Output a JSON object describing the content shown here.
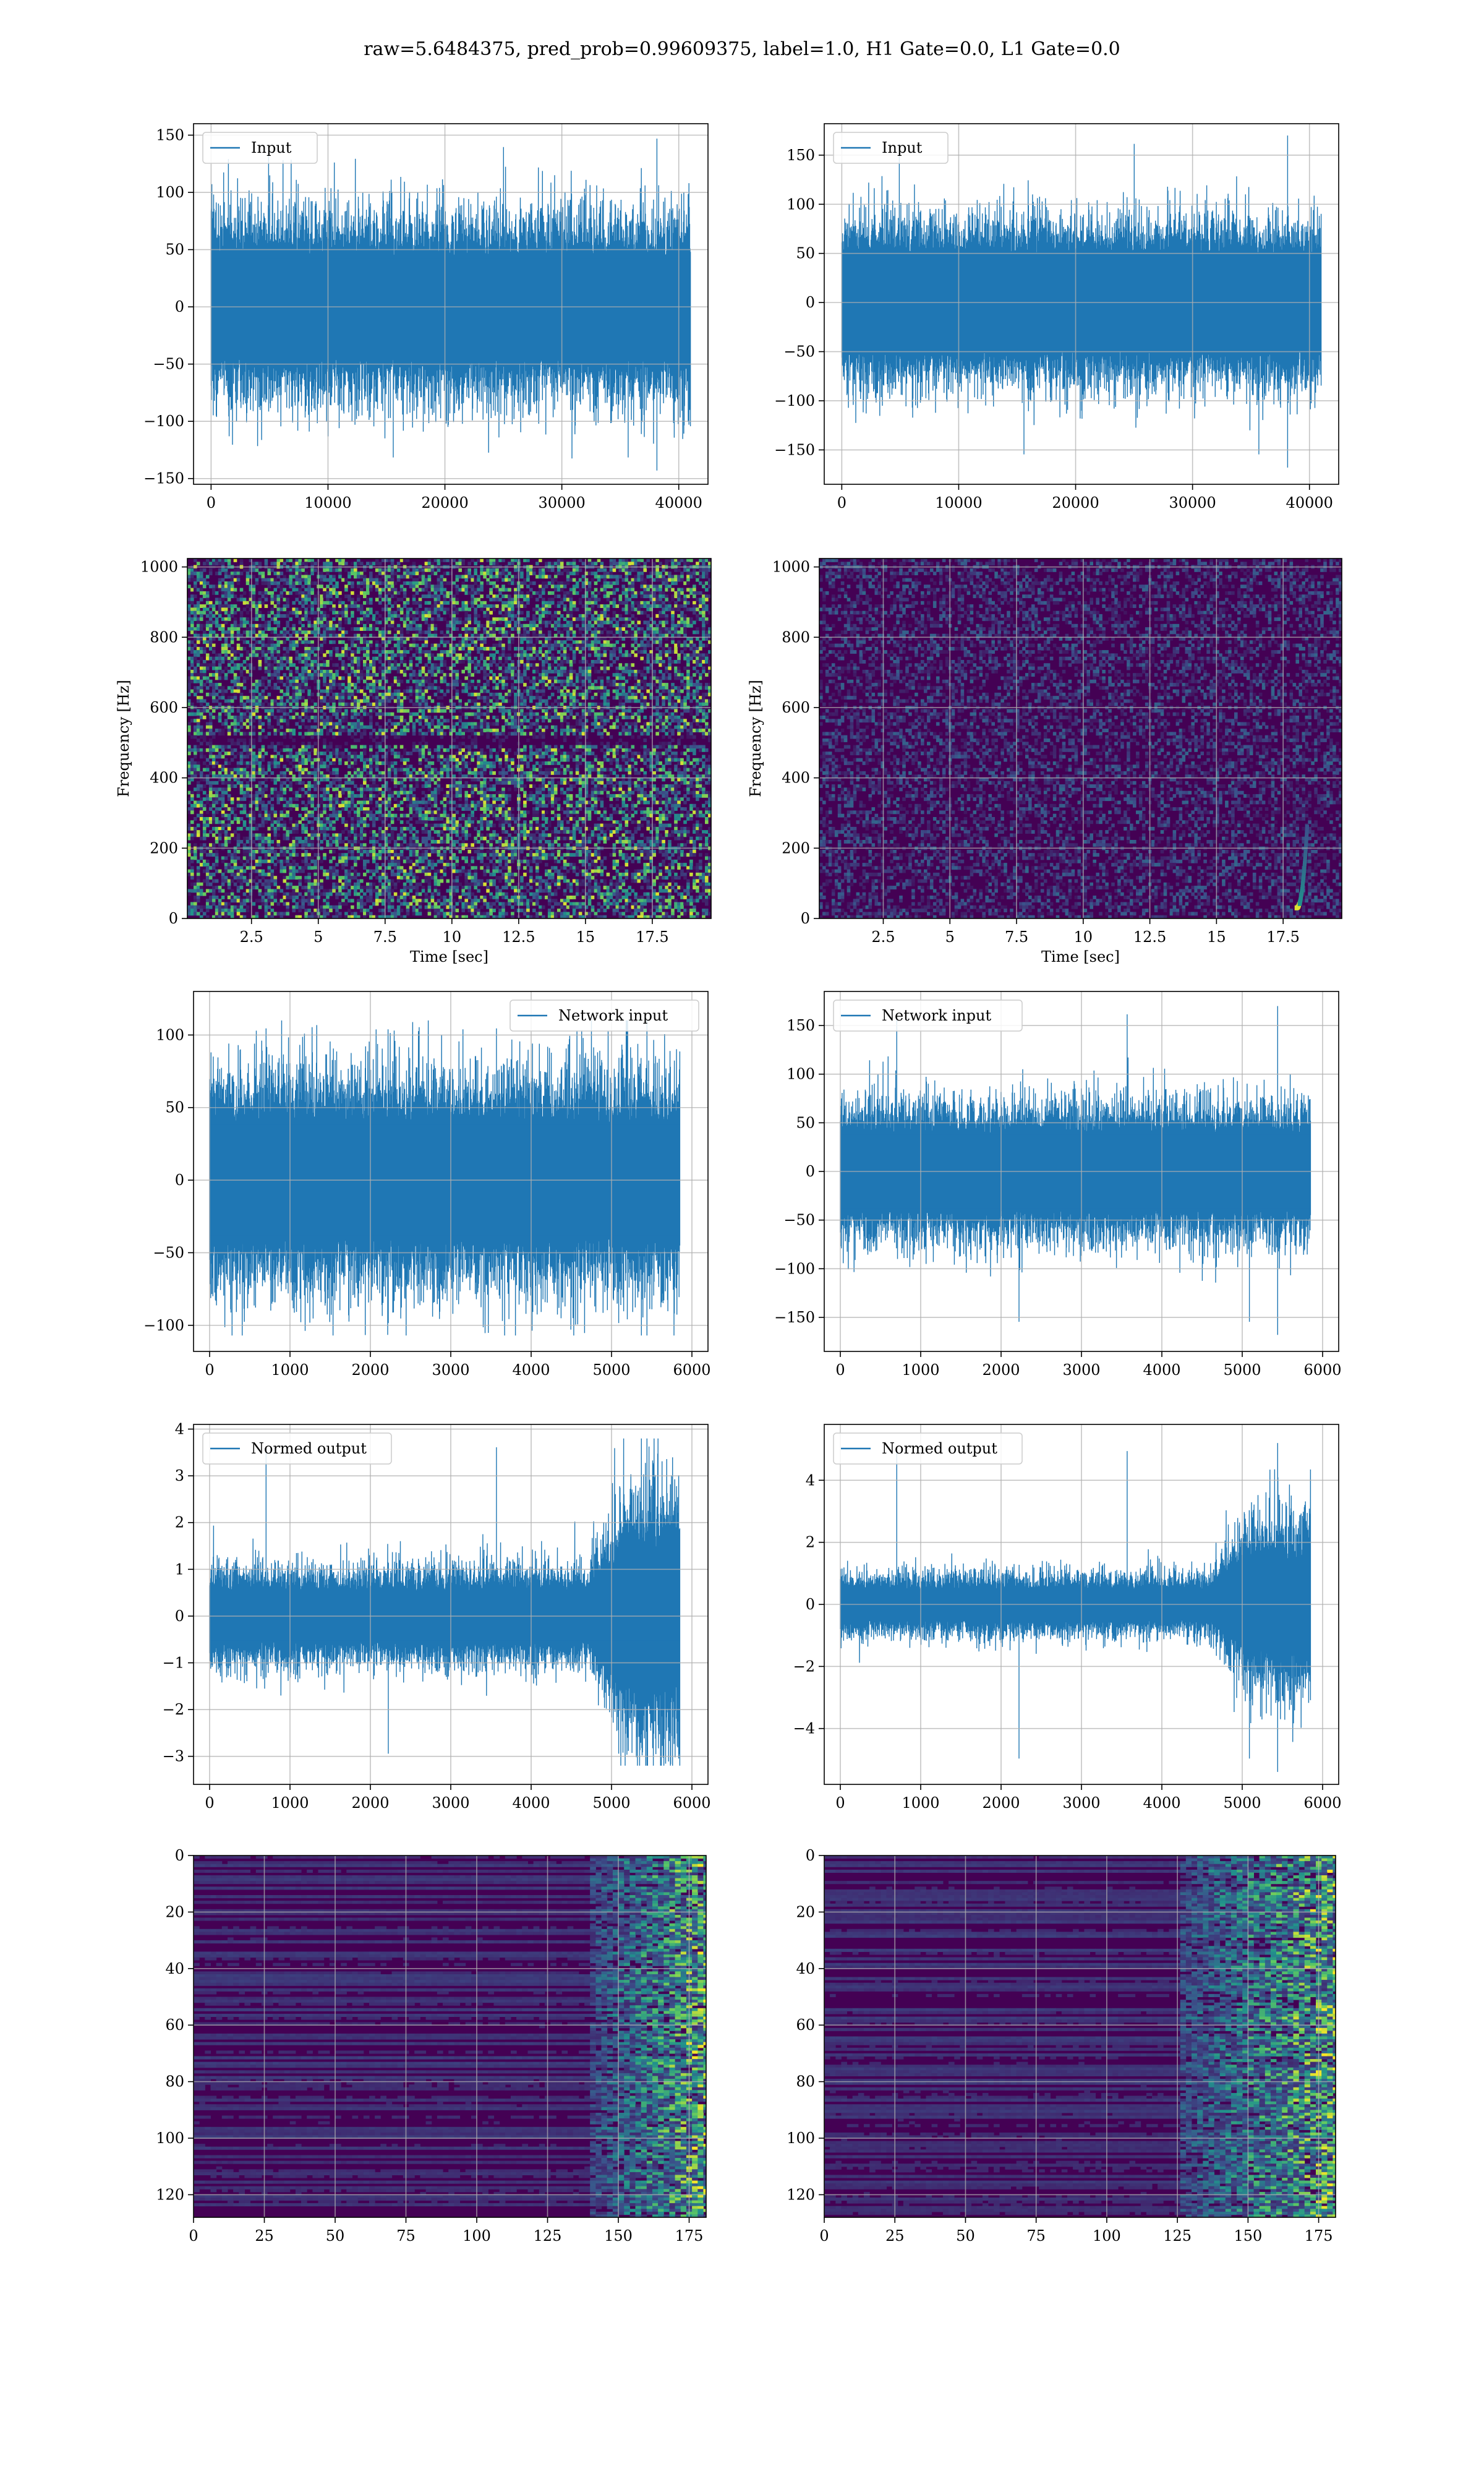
{
  "figure": {
    "title": "raw=5.6484375, pred_prob=0.99609375, label=1.0, H1 Gate=0.0, L1 Gate=0.0",
    "colors": {
      "line": "#1f77b4",
      "grid": "#b0b0b0",
      "viridis_low": "#440154",
      "viridis_mid": "#21918c",
      "viridis_high": "#fde725"
    }
  },
  "chart_data": [
    {
      "id": "h1-input",
      "type": "line",
      "legend": "Input",
      "legend_loc": "upper left",
      "grid": true,
      "x_ticks": [
        0,
        10000,
        20000,
        30000,
        40000
      ],
      "y_ticks": [
        -150,
        -100,
        -50,
        0,
        50,
        100,
        150
      ],
      "xlim": [
        -1500,
        42500
      ],
      "ylim": [
        -155,
        160
      ],
      "n_points": 41000,
      "envelope": {
        "core": 45,
        "spread": 60,
        "max": 147,
        "min": -143
      }
    },
    {
      "id": "l1-input",
      "type": "line",
      "legend": "Input",
      "legend_loc": "upper left",
      "grid": true,
      "x_ticks": [
        0,
        10000,
        20000,
        30000,
        40000
      ],
      "y_ticks": [
        -150,
        -100,
        -50,
        0,
        50,
        100,
        150
      ],
      "xlim": [
        -1500,
        42500
      ],
      "ylim": [
        -185,
        182
      ],
      "n_points": 41000,
      "envelope": {
        "core": 50,
        "spread": 55,
        "max": 170,
        "min": -168
      }
    },
    {
      "id": "h1-spectrogram",
      "type": "heatmap",
      "xlabel": "Time [sec]",
      "ylabel": "Frequency [Hz]",
      "grid": true,
      "x_ticks": [
        2.5,
        5.0,
        7.5,
        10.0,
        12.5,
        15.0,
        17.5
      ],
      "y_ticks": [
        0,
        200,
        400,
        600,
        800,
        1000
      ],
      "xlim": [
        0.1,
        19.7
      ],
      "ylim": [
        0,
        1024
      ],
      "colormap": "viridis",
      "texture": "uniform-noise"
    },
    {
      "id": "l1-spectrogram",
      "type": "heatmap",
      "xlabel": "Time [sec]",
      "ylabel": "Frequency [Hz]",
      "grid": true,
      "x_ticks": [
        2.5,
        5.0,
        7.5,
        10.0,
        12.5,
        15.0,
        17.5
      ],
      "y_ticks": [
        0,
        200,
        400,
        600,
        800,
        1000
      ],
      "xlim": [
        0.1,
        19.7
      ],
      "ylim": [
        0,
        1024
      ],
      "colormap": "viridis",
      "texture": "dark-with-chirp",
      "chirp": {
        "t_start": 18.0,
        "t_end": 18.4,
        "f_start": 30,
        "f_end": 260
      }
    },
    {
      "id": "h1-network-input",
      "type": "line",
      "legend": "Network input",
      "legend_loc": "upper right",
      "grid": true,
      "x_ticks": [
        0,
        1000,
        2000,
        3000,
        4000,
        5000,
        6000
      ],
      "y_ticks": [
        -100,
        -50,
        0,
        50,
        100
      ],
      "xlim": [
        -200,
        6200
      ],
      "ylim": [
        -118,
        130
      ],
      "n_points": 5850,
      "envelope": {
        "core": 40,
        "spread": 55,
        "max": 110,
        "min": -107
      }
    },
    {
      "id": "l1-network-input",
      "type": "line",
      "legend": "Network input",
      "legend_loc": "upper left",
      "grid": true,
      "x_ticks": [
        0,
        1000,
        2000,
        3000,
        4000,
        5000,
        6000
      ],
      "y_ticks": [
        -150,
        -100,
        -50,
        0,
        50,
        100,
        150
      ],
      "xlim": [
        -200,
        6200
      ],
      "ylim": [
        -185,
        185
      ],
      "n_points": 5850,
      "envelope": {
        "core": 40,
        "spread": 50,
        "max": 170,
        "min": -168
      }
    },
    {
      "id": "h1-normed-output",
      "type": "line",
      "legend": "Normed output",
      "legend_loc": "upper left",
      "grid": true,
      "x_ticks": [
        0,
        1000,
        2000,
        3000,
        4000,
        5000,
        6000
      ],
      "y_ticks": [
        -3,
        -2,
        -1,
        0,
        1,
        2,
        3,
        4
      ],
      "xlim": [
        -200,
        6200
      ],
      "ylim": [
        -3.6,
        4.1
      ],
      "n_points": 5850,
      "envelope": {
        "core": 0.55,
        "spread": 0.8,
        "max": 3.8,
        "min": -3.2,
        "burst_start": 4700,
        "burst_gain": 2.6
      }
    },
    {
      "id": "l1-normed-output",
      "type": "line",
      "legend": "Normed output",
      "legend_loc": "upper left",
      "grid": true,
      "x_ticks": [
        0,
        1000,
        2000,
        3000,
        4000,
        5000,
        6000
      ],
      "y_ticks": [
        -4,
        -2,
        0,
        2,
        4
      ],
      "xlim": [
        -200,
        6200
      ],
      "ylim": [
        -5.8,
        5.8
      ],
      "n_points": 5850,
      "envelope": {
        "core": 0.5,
        "spread": 0.8,
        "max": 5.2,
        "min": -5.4,
        "burst_start": 4600,
        "burst_gain": 2.9
      }
    },
    {
      "id": "h1-qtransform",
      "type": "heatmap",
      "grid": true,
      "y_inverted": true,
      "x_ticks": [
        0,
        25,
        50,
        75,
        100,
        125,
        150,
        175
      ],
      "y_ticks": [
        0,
        20,
        40,
        60,
        80,
        100,
        120
      ],
      "xlim": [
        0,
        181
      ],
      "ylim": [
        128,
        0
      ],
      "colormap": "viridis",
      "texture": "rows-rising-at-end",
      "active_from": 140
    },
    {
      "id": "l1-qtransform",
      "type": "heatmap",
      "grid": true,
      "y_inverted": true,
      "x_ticks": [
        0,
        25,
        50,
        75,
        100,
        125,
        150,
        175
      ],
      "y_ticks": [
        0,
        20,
        40,
        60,
        80,
        100,
        120
      ],
      "xlim": [
        0,
        181
      ],
      "ylim": [
        128,
        0
      ],
      "colormap": "viridis",
      "texture": "rows-rising-at-end",
      "active_from": 125
    }
  ]
}
